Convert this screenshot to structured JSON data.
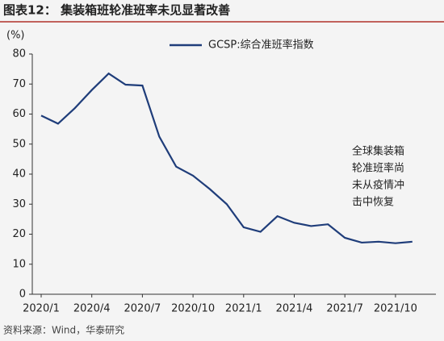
{
  "chart_data": {
    "type": "line",
    "title": "图表12： 集装箱班轮准班率未见显著改善",
    "y_label": "(%)",
    "annotation": [
      "全球集装箱",
      "轮准班率尚",
      "未从疫情冲",
      "击中恢复"
    ],
    "source": "资料来源：Wind，华泰研究",
    "categories": [
      "2020/1",
      null,
      null,
      "2020/4",
      null,
      null,
      "2020/7",
      null,
      null,
      "2020/10",
      null,
      null,
      "2021/1",
      null,
      null,
      "2021/4",
      null,
      null,
      "2021/7",
      null,
      null,
      "2021/10",
      null
    ],
    "series": [
      {
        "name": "GCSP:综合准班率指数",
        "color": "#1f3d7a",
        "values": [
          59.5,
          56.8,
          62,
          68,
          73.5,
          69.8,
          69.5,
          52.5,
          42.5,
          39.5,
          35,
          30,
          22.3,
          20.8,
          26,
          23.8,
          22.7,
          23.3,
          18.8,
          17.2,
          17.5,
          17,
          17.5
        ]
      }
    ],
    "ylim": [
      0,
      80
    ],
    "yticks": [
      0,
      10,
      20,
      30,
      40,
      50,
      60,
      70,
      80
    ],
    "grid": false
  }
}
